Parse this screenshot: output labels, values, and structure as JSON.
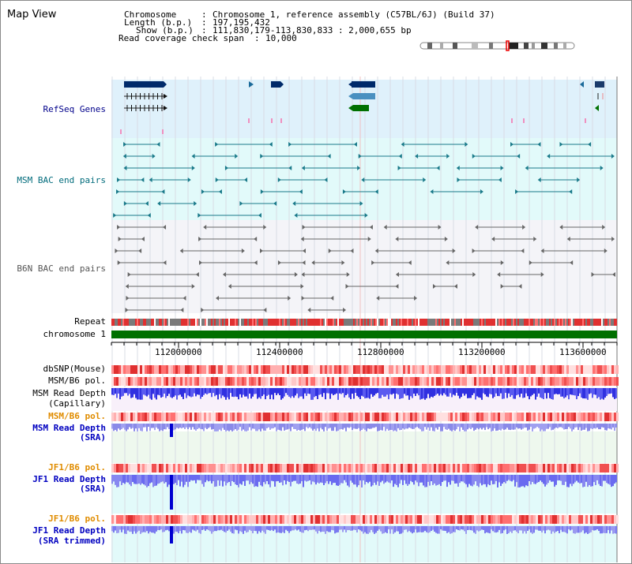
{
  "title": "Map View",
  "header": {
    "chromosome_label": "Chromosome",
    "chromosome_value": "Chromosome 1, reference assembly (C57BL/6J) (Build 37)",
    "length_label": "Length (b.p.)",
    "length_value": "197,195,432",
    "show_label": "Show (b.p.)",
    "show_value": "111,830,179-113,830,833 : 2,000,655 bp",
    "coverage_label": "Read coverage check span",
    "coverage_value": "10,000"
  },
  "tracks": {
    "refseq": "RefSeq Genes",
    "msm_bac": "MSM BAC end pairs",
    "b6n_bac": "B6N BAC end pairs",
    "repeat": "Repeat",
    "chromosome": "chromosome 1",
    "dbsnp": "dbSNP(Mouse)",
    "msm_b6_pol": "MSM/B6 pol.",
    "msm_depth_cap_1": "MSM Read Depth",
    "msm_depth_cap_2": "(Capillary)",
    "msm_b6_pol_2": "MSM/B6 pol.",
    "msm_depth_sra_1": "MSM Read Depth",
    "msm_depth_sra_2": "(SRA)",
    "jf1_b6_pol": "JF1/B6 pol.",
    "jf1_depth_sra_1": "JF1 Read Depth",
    "jf1_depth_sra_2": "(SRA)",
    "jf1_b6_pol_2": "JF1/B6 pol.",
    "jf1_depth_trim_1": "JF1 Read Depth",
    "jf1_depth_trim_2": "(SRA trimmed)"
  },
  "axis": {
    "ticks": [
      "112000000",
      "112400000",
      "112800000",
      "113200000",
      "113600000"
    ]
  },
  "colors": {
    "refseq_label": "#00008b",
    "msm_label": "#006b7b",
    "b6n_label": "#555555",
    "pol_orange": "#e08c00",
    "depth_blue": "#0000c0",
    "refseq_bg": "#dff1fb",
    "msm_bg": "#e2fafa",
    "b6n_bg": "#f4f4f8",
    "chromosome_bar": "#007000"
  }
}
